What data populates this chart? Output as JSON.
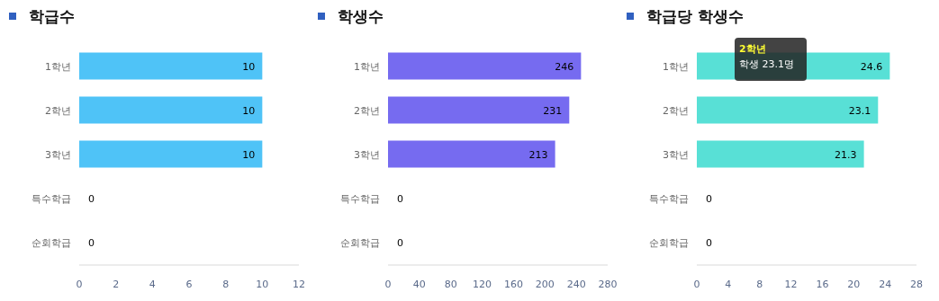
{
  "chart_data": [
    {
      "type": "bar",
      "orientation": "horizontal",
      "title": "학급수",
      "categories": [
        "1학년",
        "2학년",
        "3학년",
        "특수학급",
        "순회학급"
      ],
      "values": [
        10,
        10,
        10,
        0,
        0
      ],
      "color": "#4fc3f7",
      "xlim": [
        0,
        12
      ],
      "xticks": [
        0,
        2,
        4,
        6,
        8,
        10,
        12
      ],
      "data_labels": true
    },
    {
      "type": "bar",
      "orientation": "horizontal",
      "title": "학생수",
      "categories": [
        "1학년",
        "2학년",
        "3학년",
        "특수학급",
        "순회학급"
      ],
      "values": [
        246,
        231,
        213,
        0,
        0
      ],
      "color": "#766bf0",
      "xlim": [
        0,
        280
      ],
      "xticks": [
        0,
        40,
        80,
        120,
        160,
        200,
        240,
        280
      ],
      "data_labels": true
    },
    {
      "type": "bar",
      "orientation": "horizontal",
      "title": "학급당 학생수",
      "categories": [
        "1학년",
        "2학년",
        "3학년",
        "특수학급",
        "순회학급"
      ],
      "values": [
        24.6,
        23.1,
        21.3,
        0,
        0
      ],
      "color": "#58e0d6",
      "xlim": [
        0,
        28
      ],
      "xticks": [
        0,
        4,
        8,
        12,
        16,
        20,
        24,
        28
      ],
      "data_labels": true,
      "annotations": [
        "2학년",
        "학생 23.1명"
      ]
    }
  ]
}
